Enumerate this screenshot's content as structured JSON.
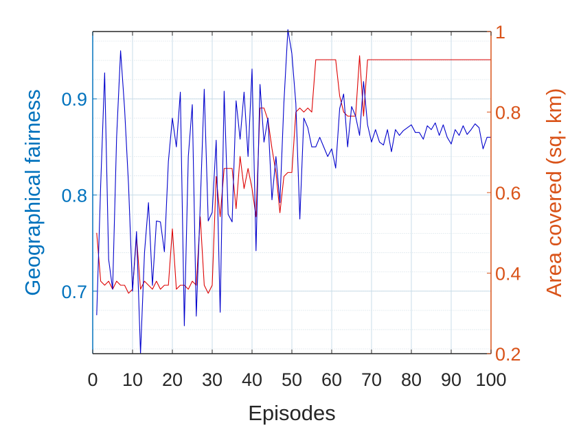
{
  "chart_data": {
    "type": "line",
    "xlabel": "Episodes",
    "ylabel_left": "Geographical fairness",
    "ylabel_right": "Area covered (sq. km)",
    "xlim": [
      0,
      100
    ],
    "ylim_left": [
      0.635,
      0.97
    ],
    "ylim_right": [
      0.2,
      1.0
    ],
    "x_ticks": [
      0,
      10,
      20,
      30,
      40,
      50,
      60,
      70,
      80,
      90,
      100
    ],
    "y_ticks_left": [
      0.7,
      0.8,
      0.9
    ],
    "y_ticks_right": [
      0.2,
      0.4,
      0.6,
      0.8,
      1
    ],
    "grid": true,
    "colors": {
      "left_axis": "#0072BD",
      "right_axis": "#D95319",
      "fairness_line": "#0000CC",
      "area_line": "#DD0000",
      "grid": "#c8dce8"
    },
    "series": [
      {
        "axis": "left",
        "x": [
          1,
          2,
          3,
          4,
          5,
          6,
          7,
          8,
          9,
          10,
          11,
          12,
          13,
          14,
          15,
          16,
          17,
          18,
          19,
          20,
          21,
          22,
          23,
          24,
          25,
          26,
          27,
          28,
          29,
          30,
          31,
          32,
          33,
          34,
          35,
          36,
          37,
          38,
          39,
          40,
          41,
          42,
          43,
          44,
          45,
          46,
          47,
          48,
          49,
          50,
          51,
          52,
          53,
          54,
          55,
          56,
          57,
          58,
          59,
          60,
          61,
          62,
          63,
          64,
          65,
          66,
          67,
          68,
          69,
          70,
          71,
          72,
          73,
          74,
          75,
          76,
          77,
          78,
          79,
          80,
          81,
          82,
          83,
          84,
          85,
          86,
          87,
          88,
          89,
          90,
          91,
          92,
          93,
          94,
          95,
          96,
          97,
          98,
          99,
          100
        ],
        "values": [
          0.675,
          0.81,
          0.927,
          0.733,
          0.702,
          0.86,
          0.95,
          0.89,
          0.81,
          0.7,
          0.762,
          0.635,
          0.74,
          0.792,
          0.706,
          0.773,
          0.772,
          0.741,
          0.835,
          0.88,
          0.85,
          0.907,
          0.664,
          0.84,
          0.894,
          0.674,
          0.79,
          0.91,
          0.773,
          0.782,
          0.857,
          0.678,
          0.908,
          0.78,
          0.772,
          0.898,
          0.858,
          0.907,
          0.84,
          0.931,
          0.742,
          0.915,
          0.855,
          0.88,
          0.795,
          0.84,
          0.792,
          0.896,
          0.972,
          0.947,
          0.895,
          0.775,
          0.88,
          0.87,
          0.85,
          0.85,
          0.86,
          0.85,
          0.84,
          0.848,
          0.828,
          0.89,
          0.905,
          0.85,
          0.892,
          0.882,
          0.862,
          0.918,
          0.873,
          0.855,
          0.868,
          0.855,
          0.852,
          0.868,
          0.845,
          0.868,
          0.862,
          0.867,
          0.87,
          0.873,
          0.865,
          0.865,
          0.858,
          0.872,
          0.868,
          0.875,
          0.862,
          0.873,
          0.86,
          0.853,
          0.868,
          0.862,
          0.872,
          0.863,
          0.868,
          0.874,
          0.87,
          0.848,
          0.86,
          0.86
        ]
      },
      {
        "axis": "right",
        "x": [
          1,
          2,
          3,
          4,
          5,
          6,
          7,
          8,
          9,
          10,
          11,
          12,
          13,
          14,
          15,
          16,
          17,
          18,
          19,
          20,
          21,
          22,
          23,
          24,
          25,
          26,
          27,
          28,
          29,
          30,
          31,
          32,
          33,
          34,
          35,
          36,
          37,
          38,
          39,
          40,
          41,
          42,
          43,
          44,
          45,
          46,
          47,
          48,
          49,
          50,
          51,
          52,
          53,
          54,
          55,
          56,
          57,
          58,
          59,
          60,
          61,
          62,
          63,
          64,
          65,
          66,
          67,
          68,
          69,
          70,
          71,
          72,
          73,
          74,
          75,
          76,
          77,
          78,
          79,
          80,
          81,
          82,
          83,
          84,
          85,
          86,
          87,
          88,
          89,
          90,
          91,
          92,
          93,
          94,
          95,
          96,
          97,
          98,
          99,
          100
        ],
        "values": [
          0.5,
          0.38,
          0.37,
          0.38,
          0.36,
          0.38,
          0.37,
          0.37,
          0.35,
          0.36,
          0.49,
          0.36,
          0.38,
          0.37,
          0.36,
          0.38,
          0.36,
          0.37,
          0.37,
          0.51,
          0.36,
          0.37,
          0.37,
          0.36,
          0.38,
          0.37,
          0.54,
          0.37,
          0.35,
          0.37,
          0.64,
          0.54,
          0.66,
          0.66,
          0.66,
          0.56,
          0.69,
          0.61,
          0.66,
          0.61,
          0.54,
          0.81,
          0.81,
          0.78,
          0.71,
          0.65,
          0.55,
          0.64,
          0.65,
          0.65,
          0.8,
          0.81,
          0.8,
          0.81,
          0.8,
          0.93,
          0.93,
          0.93,
          0.93,
          0.93,
          0.93,
          0.84,
          0.8,
          0.79,
          0.79,
          0.79,
          0.94,
          0.79,
          0.93,
          0.93,
          0.93,
          0.93,
          0.93,
          0.93,
          0.93,
          0.93,
          0.93,
          0.93,
          0.93,
          0.93,
          0.93,
          0.93,
          0.93,
          0.93,
          0.93,
          0.93,
          0.93,
          0.93,
          0.93,
          0.93,
          0.93,
          0.93,
          0.93,
          0.93,
          0.93,
          0.93,
          0.93,
          0.93,
          0.93,
          0.93
        ]
      }
    ]
  }
}
